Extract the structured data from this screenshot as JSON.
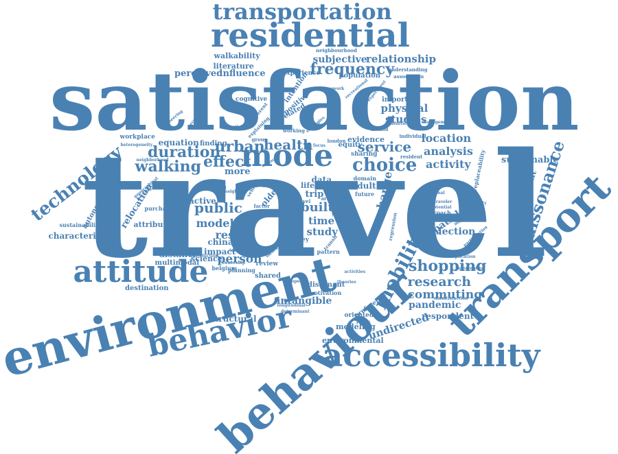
{
  "palette": {
    "word_color": "#4a81b3",
    "background": "#ffffff"
  },
  "words": [
    {
      "text": "travel",
      "weight": 100
    },
    {
      "text": "satisfaction",
      "weight": 60
    },
    {
      "text": "environment",
      "weight": 42
    },
    {
      "text": "behaviour",
      "weight": 37
    },
    {
      "text": "transport",
      "weight": 34
    },
    {
      "text": "residential",
      "weight": 28
    },
    {
      "text": "accessibility",
      "weight": 27
    },
    {
      "text": "behavior",
      "weight": 26
    },
    {
      "text": "attitude",
      "weight": 24
    },
    {
      "text": "transportation",
      "weight": 22
    },
    {
      "text": "mode",
      "weight": 22
    },
    {
      "text": "mobility",
      "weight": 16
    },
    {
      "text": "technology",
      "weight": 15
    },
    {
      "text": "choice",
      "weight": 14
    },
    {
      "text": "dissonance",
      "weight": 13
    },
    {
      "text": "frequency",
      "weight": 12
    },
    {
      "text": "duration",
      "weight": 12
    },
    {
      "text": "shopping",
      "weight": 12
    },
    {
      "text": "walking",
      "weight": 11
    },
    {
      "text": "health",
      "weight": 11
    },
    {
      "text": "effect",
      "weight": 11
    },
    {
      "text": "urban",
      "weight": 11
    },
    {
      "text": "service",
      "weight": 11
    },
    {
      "text": "public",
      "weight": 11
    },
    {
      "text": "research",
      "weight": 10
    },
    {
      "text": "commuting",
      "weight": 10
    },
    {
      "text": "person",
      "weight": 10
    },
    {
      "text": "location",
      "weight": 9
    },
    {
      "text": "analysis",
      "weight": 9
    },
    {
      "text": "activity",
      "weight": 9
    },
    {
      "text": "built",
      "weight": 9
    },
    {
      "text": "studies",
      "weight": 8
    },
    {
      "text": "physical",
      "weight": 8
    },
    {
      "text": "relationship",
      "weight": 8
    },
    {
      "text": "subjective",
      "weight": 8
    },
    {
      "text": "model",
      "weight": 8
    },
    {
      "text": "result",
      "weight": 8
    },
    {
      "text": "pandemic",
      "weight": 8
    },
    {
      "text": "intangible",
      "weight": 8
    },
    {
      "text": "undirected",
      "weight": 8
    },
    {
      "text": "development",
      "weight": 7
    },
    {
      "text": "sustainable",
      "weight": 7
    },
    {
      "text": "relocation",
      "weight": 7
    },
    {
      "text": "spatial",
      "weight": 7
    },
    {
      "text": "selection",
      "weight": 7
    },
    {
      "text": "time",
      "weight": 7
    },
    {
      "text": "study",
      "weight": 7
    },
    {
      "text": "change",
      "weight": 7
    },
    {
      "text": "perceived",
      "weight": 7
    },
    {
      "text": "influence",
      "weight": 7
    },
    {
      "text": "literature",
      "weight": 6
    },
    {
      "text": "walkability",
      "weight": 6
    },
    {
      "text": "respondent",
      "weight": 6
    },
    {
      "text": "environmental",
      "weight": 6
    },
    {
      "text": "destination",
      "weight": 6
    },
    {
      "text": "structural",
      "weight": 6
    },
    {
      "text": "modeling",
      "weight": 6
    },
    {
      "text": "distance",
      "weight": 6
    },
    {
      "text": "multimodal",
      "weight": 6
    },
    {
      "text": "science",
      "weight": 6
    },
    {
      "text": "impact",
      "weight": 6
    },
    {
      "text": "china",
      "weight": 6
    },
    {
      "text": "characteristic",
      "weight": 6
    },
    {
      "text": "equation",
      "weight": 6
    },
    {
      "text": "finding",
      "weight": 6
    },
    {
      "text": "more",
      "weight": 6
    },
    {
      "text": "adult",
      "weight": 6
    },
    {
      "text": "attribute",
      "weight": 6
    },
    {
      "text": "autonomous",
      "weight": 6
    },
    {
      "text": "active",
      "weight": 6
    },
    {
      "text": "evidence",
      "weight": 5
    },
    {
      "text": "equity",
      "weight": 5
    },
    {
      "text": "data",
      "weight": 5
    },
    {
      "text": "trip",
      "weight": 5
    },
    {
      "text": "life",
      "weight": 5
    },
    {
      "text": "population",
      "weight": 5
    },
    {
      "text": "experience",
      "weight": 5
    },
    {
      "text": "important",
      "weight": 5
    },
    {
      "text": "intention",
      "weight": 5
    },
    {
      "text": "positive",
      "weight": 5
    },
    {
      "text": "related",
      "weight": 5
    },
    {
      "text": "workplace",
      "weight": 5
    },
    {
      "text": "sharing",
      "weight": 5
    },
    {
      "text": "older",
      "weight": 5
    },
    {
      "text": "shared",
      "weight": 5
    },
    {
      "text": "dissonant",
      "weight": 5
    },
    {
      "text": "oriented",
      "weight": 5
    },
    {
      "text": "preference",
      "weight": 5
    },
    {
      "text": "irreplaceability",
      "weight": 5
    },
    {
      "text": "approach",
      "weight": 5
    },
    {
      "text": "review",
      "weight": 5
    },
    {
      "text": "survey",
      "weight": 5
    },
    {
      "text": "cognitive",
      "weight": 4
    },
    {
      "text": "purchase",
      "weight": 4
    },
    {
      "text": "sustainability",
      "weight": 4
    },
    {
      "text": "planning",
      "weight": 4
    },
    {
      "text": "motivation",
      "weight": 4
    },
    {
      "text": "belgium",
      "weight": 4
    },
    {
      "text": "future",
      "weight": 4
    },
    {
      "text": "domain",
      "weight": 4
    },
    {
      "text": "pattern",
      "weight": 4
    },
    {
      "text": "neighbourhood",
      "weight": 4
    },
    {
      "text": "understanding",
      "weight": 4
    },
    {
      "text": "association",
      "weight": 4
    },
    {
      "text": "engineering",
      "weight": 3
    },
    {
      "text": "individual",
      "weight": 3
    },
    {
      "text": "resident",
      "weight": 3
    },
    {
      "text": "london",
      "weight": 3
    },
    {
      "text": "paper",
      "weight": 3
    },
    {
      "text": "group",
      "weight": 3
    },
    {
      "text": "factor",
      "weight": 3
    },
    {
      "text": "vehicle",
      "weight": 3
    },
    {
      "text": "different",
      "weight": 3
    },
    {
      "text": "explaining",
      "weight": 3
    },
    {
      "text": "working",
      "weight": 3
    },
    {
      "text": "regression",
      "weight": 3
    },
    {
      "text": "implication",
      "weight": 3
    },
    {
      "text": "intervention",
      "weight": 3
    },
    {
      "text": "participation",
      "weight": 3
    },
    {
      "text": "multimodality",
      "weight": 3
    },
    {
      "text": "dissatisfaction",
      "weight": 3
    },
    {
      "text": "determinant",
      "weight": 3
    },
    {
      "text": "geographical",
      "weight": 3
    },
    {
      "text": "neighborhood",
      "weight": 3
    },
    {
      "text": "introduction",
      "weight": 3
    },
    {
      "text": "heterogeneity",
      "weight": 3
    },
    {
      "text": "perspective",
      "weight": 3
    },
    {
      "text": "captivity",
      "weight": 3
    },
    {
      "text": "temporal",
      "weight": 3
    },
    {
      "text": "insight",
      "weight": 3
    },
    {
      "text": "focus",
      "weight": 3
    },
    {
      "text": "young",
      "weight": 3
    },
    {
      "text": "area",
      "weight": 3
    },
    {
      "text": "self",
      "weight": 3
    },
    {
      "text": "social",
      "weight": 3
    },
    {
      "text": "level",
      "weight": 3
    },
    {
      "text": "experiment",
      "weight": 3
    },
    {
      "text": "framework",
      "weight": 3
    },
    {
      "text": "recreational",
      "weight": 3
    },
    {
      "text": "amenities",
      "weight": 3
    },
    {
      "text": "management",
      "weight": 3
    },
    {
      "text": "method",
      "weight": 3
    },
    {
      "text": "traveler",
      "weight": 3
    },
    {
      "text": "external",
      "weight": 3
    },
    {
      "text": "potential",
      "weight": 3
    },
    {
      "text": "propensity",
      "weight": 3
    },
    {
      "text": "parking",
      "weight": 3
    },
    {
      "text": "catchment",
      "weight": 3
    },
    {
      "text": "ownership",
      "weight": 3
    },
    {
      "text": "increase",
      "weight": 3
    },
    {
      "text": "longitudinal",
      "weight": 3
    },
    {
      "text": "european",
      "weight": 3
    },
    {
      "text": "transit",
      "weight": 3
    },
    {
      "text": "activities",
      "weight": 3
    },
    {
      "text": "theories",
      "weight": 3
    },
    {
      "text": "policy",
      "weight": 3
    },
    {
      "text": "measure",
      "weight": 3
    },
    {
      "text": "personal",
      "weight": 3
    },
    {
      "text": "strategies",
      "weight": 3
    }
  ]
}
